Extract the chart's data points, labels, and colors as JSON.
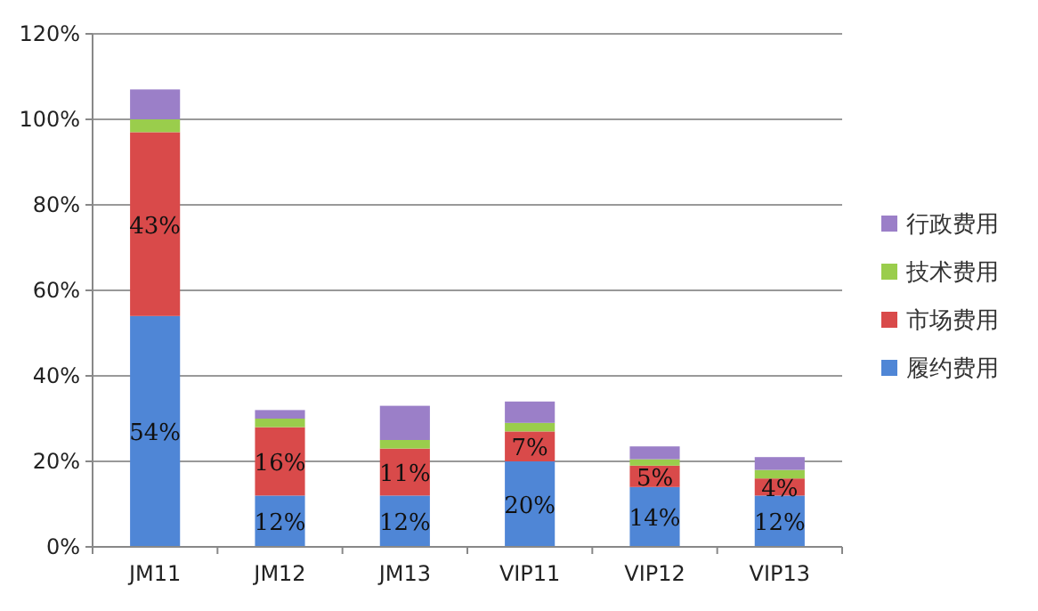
{
  "chart_data": {
    "type": "bar",
    "stacked": true,
    "categories": [
      "JM11",
      "JM12",
      "JM13",
      "VIP11",
      "VIP12",
      "VIP13"
    ],
    "series": [
      {
        "name": "履约费用",
        "color": "#4f86d6",
        "values": [
          54,
          12,
          12,
          20,
          14,
          12
        ],
        "value_labels": [
          "54%",
          "12%",
          "12%",
          "20%",
          "14%",
          "12%"
        ]
      },
      {
        "name": "市场费用",
        "color": "#d94a4a",
        "values": [
          43,
          16,
          11,
          7,
          5,
          4
        ],
        "value_labels": [
          "43%",
          "16%",
          "11%",
          "7%",
          "5%",
          "4%"
        ]
      },
      {
        "name": "技术费用",
        "color": "#9acd4c",
        "values": [
          3,
          2,
          2,
          2,
          1.5,
          2
        ]
      },
      {
        "name": "行政费用",
        "color": "#9b7fc8",
        "values": [
          7,
          2,
          8,
          5,
          3,
          3
        ]
      }
    ],
    "ylim": [
      0,
      120
    ],
    "yticks": [
      {
        "value": 0,
        "label": "0%"
      },
      {
        "value": 20,
        "label": "20%"
      },
      {
        "value": 40,
        "label": "40%"
      },
      {
        "value": 60,
        "label": "60%"
      },
      {
        "value": 80,
        "label": "80%"
      },
      {
        "value": 100,
        "label": "100%"
      },
      {
        "value": 120,
        "label": "120%"
      }
    ],
    "grid": "y",
    "legend": "right"
  }
}
